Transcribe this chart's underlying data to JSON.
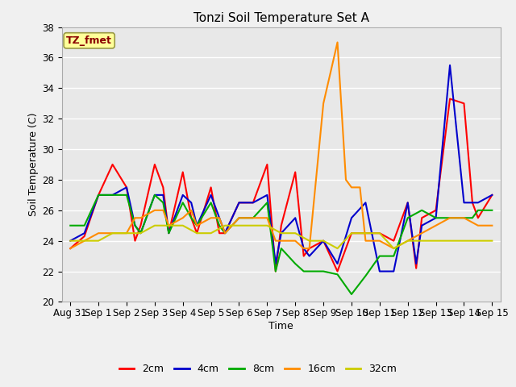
{
  "title": "Tonzi Soil Temperature Set A",
  "xlabel": "Time",
  "ylabel": "Soil Temperature (C)",
  "ylim": [
    20,
    38
  ],
  "annotation": "TZ_fmet",
  "annotation_color": "#8B0000",
  "annotation_bg": "#FFFF99",
  "bg_color": "#E8E8E8",
  "grid_color": "#FFFFFF",
  "series_colors": {
    "2cm": "#FF0000",
    "4cm": "#0000CC",
    "8cm": "#00AA00",
    "16cm": "#FF8C00",
    "32cm": "#CCCC00"
  },
  "x_labels": [
    "Aug 31",
    "Sep 1",
    "Sep 2",
    "Sep 3",
    "Sep 4",
    "Sep 5",
    "Sep 6",
    "Sep 7",
    "Sep 8",
    "Sep 9",
    "Sep 10",
    "Sep 11",
    "Sep 12",
    "Sep 13",
    "Sep 14",
    "Sep 15"
  ],
  "series": {
    "2cm": {
      "x": [
        0,
        0.5,
        1.0,
        1.5,
        2.0,
        2.3,
        2.5,
        3.0,
        3.3,
        3.5,
        4.0,
        4.3,
        4.5,
        5.0,
        5.3,
        5.5,
        6.0,
        6.5,
        7.0,
        7.3,
        7.5,
        8.0,
        8.3,
        8.5,
        9.0,
        9.5,
        10.0,
        10.5,
        11.0,
        11.5,
        12.0,
        12.3,
        12.5,
        13.0,
        13.5,
        14.0,
        14.3,
        14.5,
        15.0
      ],
      "y": [
        23.5,
        24.3,
        27.0,
        29.0,
        27.5,
        24.0,
        25.0,
        29.0,
        27.5,
        24.5,
        28.5,
        25.5,
        24.5,
        27.5,
        24.5,
        24.5,
        26.5,
        26.5,
        29.0,
        22.0,
        25.0,
        28.5,
        23.0,
        23.5,
        24.0,
        22.0,
        24.5,
        24.5,
        24.5,
        24.0,
        26.5,
        22.2,
        25.5,
        26.0,
        33.3,
        33.0,
        26.5,
        25.5,
        27.0
      ]
    },
    "4cm": {
      "x": [
        0,
        0.5,
        1.0,
        1.5,
        2.0,
        2.3,
        2.5,
        3.0,
        3.3,
        3.5,
        4.0,
        4.3,
        4.5,
        5.0,
        5.3,
        5.5,
        6.0,
        6.5,
        7.0,
        7.3,
        7.5,
        8.0,
        8.3,
        8.5,
        9.0,
        9.5,
        10.0,
        10.5,
        11.0,
        11.5,
        12.0,
        12.3,
        12.5,
        13.0,
        13.5,
        14.0,
        14.3,
        14.5,
        15.0
      ],
      "y": [
        24.0,
        24.5,
        27.0,
        27.0,
        27.5,
        25.0,
        24.5,
        27.0,
        27.0,
        24.5,
        27.0,
        26.5,
        25.0,
        27.0,
        25.5,
        24.5,
        26.5,
        26.5,
        27.0,
        22.5,
        24.5,
        25.5,
        23.5,
        23.0,
        24.0,
        22.5,
        25.5,
        26.5,
        22.0,
        22.0,
        26.5,
        22.5,
        25.0,
        25.5,
        35.5,
        26.5,
        26.5,
        26.5,
        27.0
      ]
    },
    "8cm": {
      "x": [
        0,
        0.5,
        1.0,
        1.5,
        2.0,
        2.3,
        2.5,
        3.0,
        3.3,
        3.5,
        4.0,
        4.3,
        4.5,
        5.0,
        5.3,
        5.5,
        6.0,
        6.5,
        7.0,
        7.3,
        7.5,
        8.0,
        8.3,
        8.5,
        9.0,
        9.5,
        10.0,
        10.5,
        11.0,
        11.5,
        12.0,
        12.5,
        13.0,
        13.5,
        14.0,
        14.3,
        14.5,
        15.0
      ],
      "y": [
        25.0,
        25.0,
        27.0,
        27.0,
        27.0,
        25.0,
        24.5,
        27.0,
        26.5,
        24.5,
        26.5,
        25.5,
        25.0,
        26.5,
        25.0,
        24.5,
        25.5,
        25.5,
        26.5,
        22.0,
        23.5,
        22.5,
        22.0,
        22.0,
        22.0,
        21.8,
        20.5,
        21.7,
        23.0,
        23.0,
        25.5,
        26.0,
        25.5,
        25.5,
        25.5,
        25.5,
        26.0,
        26.0
      ]
    },
    "16cm": {
      "x": [
        0,
        0.5,
        1.0,
        1.5,
        2.0,
        2.3,
        2.5,
        3.0,
        3.3,
        3.5,
        4.0,
        4.3,
        4.5,
        5.0,
        5.3,
        5.5,
        6.0,
        6.5,
        7.0,
        7.3,
        7.5,
        8.0,
        8.3,
        8.5,
        9.0,
        9.5,
        9.8,
        10.0,
        10.3,
        10.5,
        11.0,
        11.5,
        12.0,
        12.5,
        13.0,
        13.5,
        14.0,
        14.5,
        15.0
      ],
      "y": [
        23.5,
        24.0,
        24.5,
        24.5,
        24.5,
        25.5,
        25.5,
        26.0,
        26.0,
        25.0,
        25.5,
        26.0,
        25.0,
        25.5,
        25.5,
        24.5,
        25.5,
        25.5,
        25.5,
        24.0,
        24.0,
        24.0,
        23.5,
        23.5,
        33.0,
        37.0,
        28.0,
        27.5,
        27.5,
        24.0,
        24.0,
        23.5,
        24.0,
        24.5,
        25.0,
        25.5,
        25.5,
        25.0,
        25.0
      ]
    },
    "32cm": {
      "x": [
        0,
        0.5,
        1.0,
        1.5,
        2.0,
        2.5,
        3.0,
        3.5,
        4.0,
        4.5,
        5.0,
        5.5,
        6.0,
        6.5,
        7.0,
        7.5,
        8.0,
        8.5,
        9.0,
        9.5,
        10.0,
        10.5,
        11.0,
        11.5,
        12.0,
        12.5,
        13.0,
        13.5,
        14.0,
        14.5,
        15.0
      ],
      "y": [
        24.0,
        24.0,
        24.0,
        24.5,
        24.5,
        24.5,
        25.0,
        25.0,
        25.0,
        24.5,
        24.5,
        25.0,
        25.0,
        25.0,
        25.0,
        24.5,
        24.5,
        24.0,
        24.0,
        23.5,
        24.5,
        24.5,
        24.5,
        23.5,
        24.0,
        24.0,
        24.0,
        24.0,
        24.0,
        24.0,
        24.0
      ]
    }
  }
}
